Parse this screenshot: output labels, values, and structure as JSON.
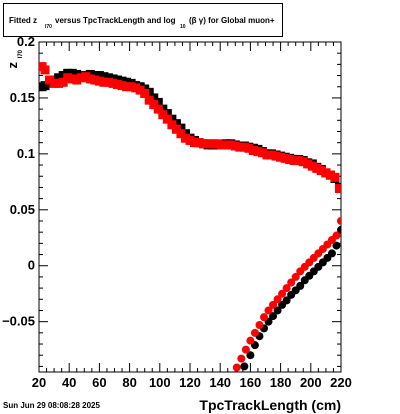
{
  "title": {
    "prefix": "Fitted  z",
    "sub_z": "I70",
    "mid": "  versus TpcTrackLength and log",
    "sub_log": "10",
    "suffix": "(β  γ) for Global muon+"
  },
  "footer": {
    "timestamp": "Sun Jun 29 08:08:28 2025"
  },
  "chart_data": {
    "type": "scatter",
    "xlabel": "TpcTrackLength (cm)",
    "ylabel": "z",
    "ylabel_sub": "I70",
    "xlim": [
      20,
      220
    ],
    "ylim": [
      -0.095,
      0.2
    ],
    "x_ticks": [
      20,
      40,
      60,
      80,
      100,
      120,
      140,
      160,
      180,
      200,
      220
    ],
    "y_ticks": [
      -0.05,
      0,
      0.05,
      0.1,
      0.15,
      0.2
    ],
    "y_tick_labels": [
      "−0.05",
      "0",
      "0.05",
      "0.1",
      "0.15",
      "0.2"
    ],
    "y_top_label": "0.2",
    "grid": true,
    "series": [
      {
        "color": "#000000",
        "marker": "square",
        "points": [
          [
            22,
            0.16
          ],
          [
            24,
            0.161
          ],
          [
            27,
            0.164
          ],
          [
            30,
            0.166
          ],
          [
            33,
            0.168
          ],
          [
            36,
            0.17
          ],
          [
            39,
            0.172
          ],
          [
            42,
            0.172
          ],
          [
            45,
            0.171
          ],
          [
            48,
            0.169
          ],
          [
            51,
            0.17
          ],
          [
            54,
            0.171
          ],
          [
            57,
            0.17
          ],
          [
            60,
            0.17
          ],
          [
            63,
            0.169
          ],
          [
            66,
            0.168
          ],
          [
            69,
            0.167
          ],
          [
            72,
            0.166
          ],
          [
            75,
            0.165
          ],
          [
            78,
            0.164
          ],
          [
            81,
            0.163
          ],
          [
            84,
            0.161
          ],
          [
            87,
            0.16
          ],
          [
            90,
            0.158
          ],
          [
            93,
            0.155
          ],
          [
            96,
            0.15
          ],
          [
            99,
            0.146
          ],
          [
            102,
            0.14
          ],
          [
            105,
            0.136
          ],
          [
            108,
            0.131
          ],
          [
            111,
            0.127
          ],
          [
            114,
            0.123
          ],
          [
            117,
            0.118
          ],
          [
            120,
            0.114
          ],
          [
            123,
            0.112
          ],
          [
            126,
            0.11
          ],
          [
            129,
            0.109
          ],
          [
            132,
            0.108
          ],
          [
            135,
            0.108
          ],
          [
            138,
            0.108
          ],
          [
            141,
            0.108
          ],
          [
            144,
            0.109
          ],
          [
            147,
            0.109
          ],
          [
            150,
            0.108
          ],
          [
            153,
            0.107
          ],
          [
            156,
            0.107
          ],
          [
            159,
            0.106
          ],
          [
            162,
            0.105
          ],
          [
            165,
            0.104
          ],
          [
            168,
            0.102
          ],
          [
            171,
            0.1
          ],
          [
            174,
            0.1
          ],
          [
            177,
            0.099
          ],
          [
            180,
            0.098
          ],
          [
            183,
            0.097
          ],
          [
            186,
            0.096
          ],
          [
            189,
            0.095
          ],
          [
            192,
            0.095
          ],
          [
            195,
            0.094
          ],
          [
            198,
            0.092
          ],
          [
            201,
            0.091
          ],
          [
            204,
            0.088
          ],
          [
            207,
            0.086
          ],
          [
            210,
            0.083
          ],
          [
            213,
            0.081
          ],
          [
            216,
            0.078
          ],
          [
            219,
            0.07
          ]
        ]
      },
      {
        "color": "#ff0000",
        "marker": "square",
        "points": [
          [
            22,
            0.178
          ],
          [
            24,
            0.175
          ],
          [
            27,
            0.166
          ],
          [
            30,
            0.163
          ],
          [
            33,
            0.163
          ],
          [
            36,
            0.164
          ],
          [
            39,
            0.168
          ],
          [
            42,
            0.167
          ],
          [
            45,
            0.166
          ],
          [
            48,
            0.168
          ],
          [
            51,
            0.169
          ],
          [
            54,
            0.167
          ],
          [
            57,
            0.166
          ],
          [
            60,
            0.165
          ],
          [
            63,
            0.164
          ],
          [
            66,
            0.164
          ],
          [
            69,
            0.163
          ],
          [
            72,
            0.162
          ],
          [
            75,
            0.161
          ],
          [
            78,
            0.16
          ],
          [
            81,
            0.16
          ],
          [
            84,
            0.159
          ],
          [
            87,
            0.157
          ],
          [
            90,
            0.154
          ],
          [
            93,
            0.148
          ],
          [
            96,
            0.144
          ],
          [
            99,
            0.14
          ],
          [
            102,
            0.135
          ],
          [
            105,
            0.131
          ],
          [
            108,
            0.126
          ],
          [
            111,
            0.122
          ],
          [
            114,
            0.118
          ],
          [
            117,
            0.114
          ],
          [
            120,
            0.112
          ],
          [
            123,
            0.11
          ],
          [
            126,
            0.11
          ],
          [
            129,
            0.109
          ],
          [
            132,
            0.109
          ],
          [
            135,
            0.109
          ],
          [
            138,
            0.109
          ],
          [
            141,
            0.108
          ],
          [
            144,
            0.108
          ],
          [
            147,
            0.108
          ],
          [
            150,
            0.107
          ],
          [
            153,
            0.106
          ],
          [
            156,
            0.106
          ],
          [
            159,
            0.105
          ],
          [
            162,
            0.103
          ],
          [
            165,
            0.102
          ],
          [
            168,
            0.101
          ],
          [
            171,
            0.099
          ],
          [
            174,
            0.099
          ],
          [
            177,
            0.098
          ],
          [
            180,
            0.097
          ],
          [
            183,
            0.096
          ],
          [
            186,
            0.095
          ],
          [
            189,
            0.094
          ],
          [
            192,
            0.094
          ],
          [
            195,
            0.093
          ],
          [
            198,
            0.091
          ],
          [
            201,
            0.089
          ],
          [
            204,
            0.087
          ],
          [
            207,
            0.085
          ],
          [
            210,
            0.083
          ],
          [
            213,
            0.081
          ],
          [
            216,
            0.079
          ],
          [
            219,
            0.069
          ]
        ]
      },
      {
        "color": "#000000",
        "marker": "circle",
        "points": [
          [
            156,
            -0.09
          ],
          [
            160,
            -0.08
          ],
          [
            163,
            -0.071
          ],
          [
            166,
            -0.063
          ],
          [
            169,
            -0.056
          ],
          [
            172,
            -0.05
          ],
          [
            175,
            -0.045
          ],
          [
            178,
            -0.04
          ],
          [
            181,
            -0.035
          ],
          [
            184,
            -0.031
          ],
          [
            187,
            -0.026
          ],
          [
            190,
            -0.022
          ],
          [
            193,
            -0.018
          ],
          [
            196,
            -0.013
          ],
          [
            199,
            -0.009
          ],
          [
            202,
            -0.005
          ],
          [
            205,
            -0.001
          ],
          [
            208,
            0.003
          ],
          [
            211,
            0.007
          ],
          [
            214,
            0.011
          ],
          [
            217,
            0.018
          ],
          [
            220,
            0.032
          ]
        ]
      },
      {
        "color": "#ff0000",
        "marker": "circle",
        "points": [
          [
            151,
            -0.091
          ],
          [
            154,
            -0.083
          ],
          [
            157,
            -0.075
          ],
          [
            160,
            -0.067
          ],
          [
            163,
            -0.06
          ],
          [
            166,
            -0.053
          ],
          [
            169,
            -0.046
          ],
          [
            172,
            -0.04
          ],
          [
            175,
            -0.035
          ],
          [
            178,
            -0.03
          ],
          [
            181,
            -0.025
          ],
          [
            184,
            -0.02
          ],
          [
            187,
            -0.015
          ],
          [
            190,
            -0.01
          ],
          [
            193,
            -0.005
          ],
          [
            196,
            -0.001
          ],
          [
            199,
            0.003
          ],
          [
            202,
            0.007
          ],
          [
            205,
            0.011
          ],
          [
            208,
            0.015
          ],
          [
            211,
            0.019
          ],
          [
            214,
            0.023
          ],
          [
            217,
            0.027
          ],
          [
            220,
            0.04
          ]
        ]
      }
    ]
  }
}
